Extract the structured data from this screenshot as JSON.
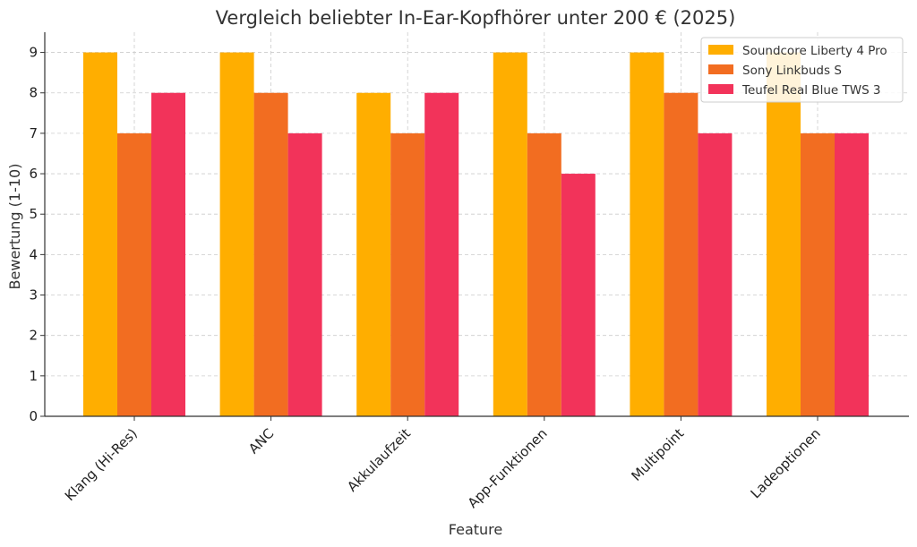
{
  "chart_data": {
    "type": "bar",
    "title": "Vergleich beliebter In-Ear-Kopfhörer unter 200 € (2025)",
    "xlabel": "Feature",
    "ylabel": "Bewertung (1-10)",
    "ylim": [
      0,
      9.5
    ],
    "yticks": [
      0,
      1,
      2,
      3,
      4,
      5,
      6,
      7,
      8,
      9
    ],
    "grid": true,
    "legend_position": "top-right",
    "categories": [
      "Klang (Hi-Res)",
      "ANC",
      "Akkulaufzeit",
      "App-Funktionen",
      "Multipoint",
      "Ladeoptionen"
    ],
    "series": [
      {
        "name": "Soundcore Liberty 4 Pro",
        "color": "#ffae00",
        "values": [
          9,
          9,
          8,
          9,
          9,
          9
        ]
      },
      {
        "name": "Sony Linkbuds S",
        "color": "#f26d21",
        "values": [
          7,
          8,
          7,
          7,
          8,
          7
        ]
      },
      {
        "name": "Teufel Real Blue TWS 3",
        "color": "#f2335a",
        "values": [
          8,
          7,
          8,
          6,
          7,
          7
        ]
      }
    ]
  }
}
